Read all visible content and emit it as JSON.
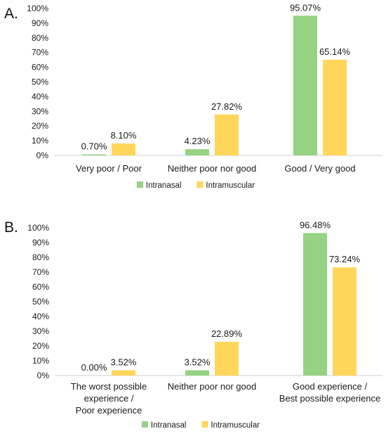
{
  "chart_data": [
    {
      "type": "bar",
      "panel_label": "A.",
      "categories": [
        [
          "Very poor / Poor"
        ],
        [
          "Neither poor nor good"
        ],
        [
          "Good / Very good"
        ]
      ],
      "series": [
        {
          "name": "Intranasal",
          "values": [
            0.7,
            4.23,
            95.07
          ],
          "labels": [
            "0.70%",
            "4.23%",
            "95.07%"
          ],
          "color": "#95d283"
        },
        {
          "name": "Intramuscular",
          "values": [
            8.1,
            27.82,
            65.14
          ],
          "labels": [
            "8.10%",
            "27.82%",
            "65.14%"
          ],
          "color": "#ffd65a"
        }
      ],
      "y_ticks": [
        "0%",
        "10%",
        "20%",
        "30%",
        "40%",
        "50%",
        "60%",
        "70%",
        "80%",
        "90%",
        "100%"
      ],
      "ylim": [
        0,
        100
      ],
      "grid": false,
      "legend_position": "bottom"
    },
    {
      "type": "bar",
      "panel_label": "B.",
      "categories": [
        [
          "The worst possible",
          "experience /",
          "Poor experience"
        ],
        [
          "Neither poor nor good"
        ],
        [
          "Good experience /",
          "Best possible experience"
        ]
      ],
      "series": [
        {
          "name": "Intranasal",
          "values": [
            0.0,
            3.52,
            96.48
          ],
          "labels": [
            "0.00%",
            "3.52%",
            "96.48%"
          ],
          "color": "#95d283"
        },
        {
          "name": "Intramuscular",
          "values": [
            3.52,
            22.89,
            73.24
          ],
          "labels": [
            "3.52%",
            "22.89%",
            "73.24%"
          ],
          "color": "#ffd65a"
        }
      ],
      "y_ticks": [
        "0%",
        "10%",
        "20%",
        "30%",
        "40%",
        "50%",
        "60%",
        "70%",
        "80%",
        "90%",
        "100%"
      ],
      "ylim": [
        0,
        100
      ],
      "grid": false,
      "legend_position": "bottom"
    }
  ]
}
